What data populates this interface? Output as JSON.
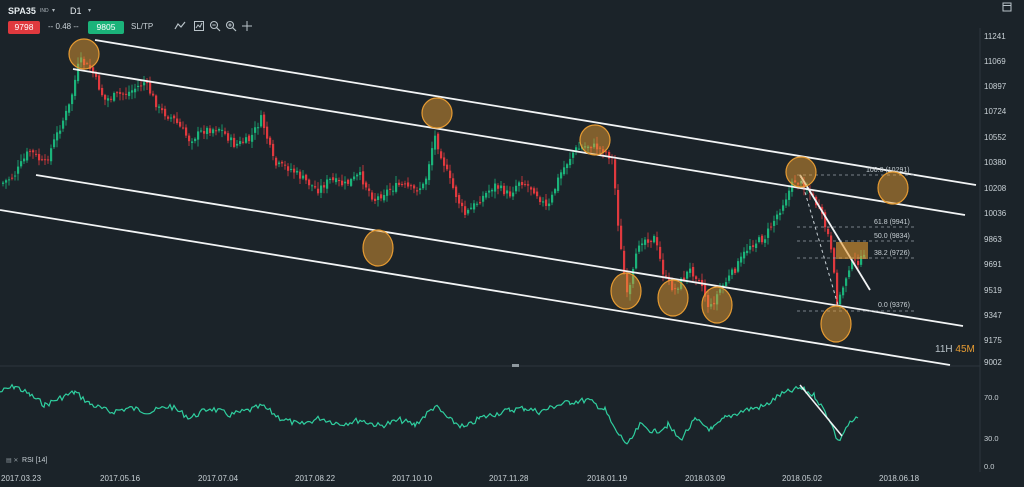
{
  "header": {
    "symbol": "SPA35",
    "exchange": "IND",
    "timeframe": "D1",
    "sell_price": "9798",
    "change": "-- 0.48 --",
    "buy_price": "9805",
    "sltp_label": "SL/TP"
  },
  "countdown": {
    "hours": "11H",
    "minutes": "45M"
  },
  "price_axis": {
    "labels": [
      "11241",
      "11069",
      "10897",
      "10724",
      "10552",
      "10380",
      "10208",
      "10036",
      "9863",
      "9691",
      "9519",
      "9347",
      "9175",
      "9002"
    ]
  },
  "rsi_axis": {
    "labels": [
      "70.0",
      "30.0",
      "0.0"
    ]
  },
  "indicator": {
    "label": "RSI [14]"
  },
  "date_axis": {
    "labels": [
      "2017.03.23",
      "2017.05.16",
      "2017.07.04",
      "2017.08.22",
      "2017.10.10",
      "2017.11.28",
      "2018.01.19",
      "2018.03.09",
      "2018.05.02",
      "2018.06.18"
    ]
  },
  "fib_levels": [
    {
      "label": "100.0 (10291)"
    },
    {
      "label": "61.8 (9941)"
    },
    {
      "label": "50.0 (9834)"
    },
    {
      "label": "38.2 (9726)"
    },
    {
      "label": "0.0 (9376)"
    }
  ],
  "colors": {
    "bg": "#1b2329",
    "up": "#1bb37a",
    "down": "#e0393e",
    "channel": "#ffffff",
    "marker": "#e69b32",
    "rsi": "#2fcf9f"
  },
  "icons": [
    "trend-line-icon",
    "zoom-out-icon",
    "zoom-in-icon",
    "crosshair-icon",
    "indicator-icon",
    "chart-type-icon",
    "maximize-icon"
  ]
}
